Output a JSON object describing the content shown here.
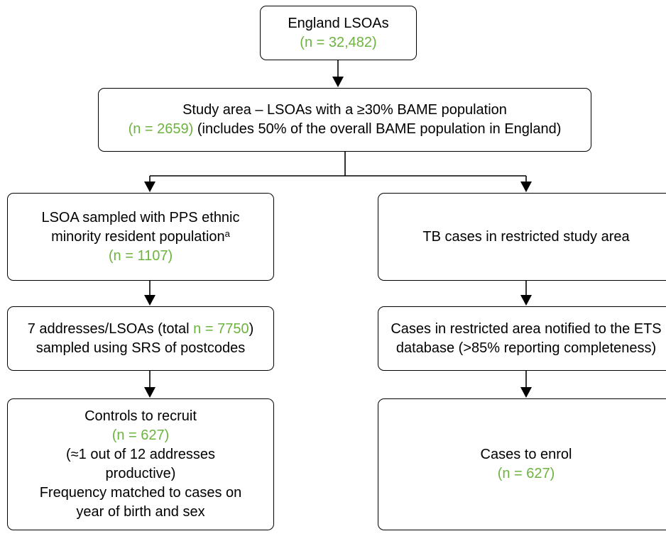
{
  "nodes": [
    {
      "title": "England LSOAs",
      "count": "(n = 32,482)"
    },
    {
      "title": "Study area – LSOAs with a ≥30% BAME population",
      "count": "(n = 2659)",
      "detail": "(includes 50% of the overall BAME population in England)"
    },
    {
      "title": "LSOA sampled with PPS ethnic minority resident population",
      "footnote": "a",
      "count": "(n = 1107)"
    },
    {
      "title": "7 addresses/LSOAs (total",
      "count": "n = 7750",
      "title_end": ")",
      "detail": "sampled using SRS of postcodes"
    },
    {
      "title": "Controls to recruit",
      "count": "(n = 627)",
      "detail": "(≈1 out of 12 addresses productive)",
      "detail2": "Frequency matched to cases on year of birth and sex"
    },
    {
      "title": "TB cases in restricted study area"
    },
    {
      "title": "Cases in restricted area notified to the ETS database (>85% reporting completeness)"
    },
    {
      "title": "Cases to enrol",
      "count": "(n = 627)"
    }
  ]
}
